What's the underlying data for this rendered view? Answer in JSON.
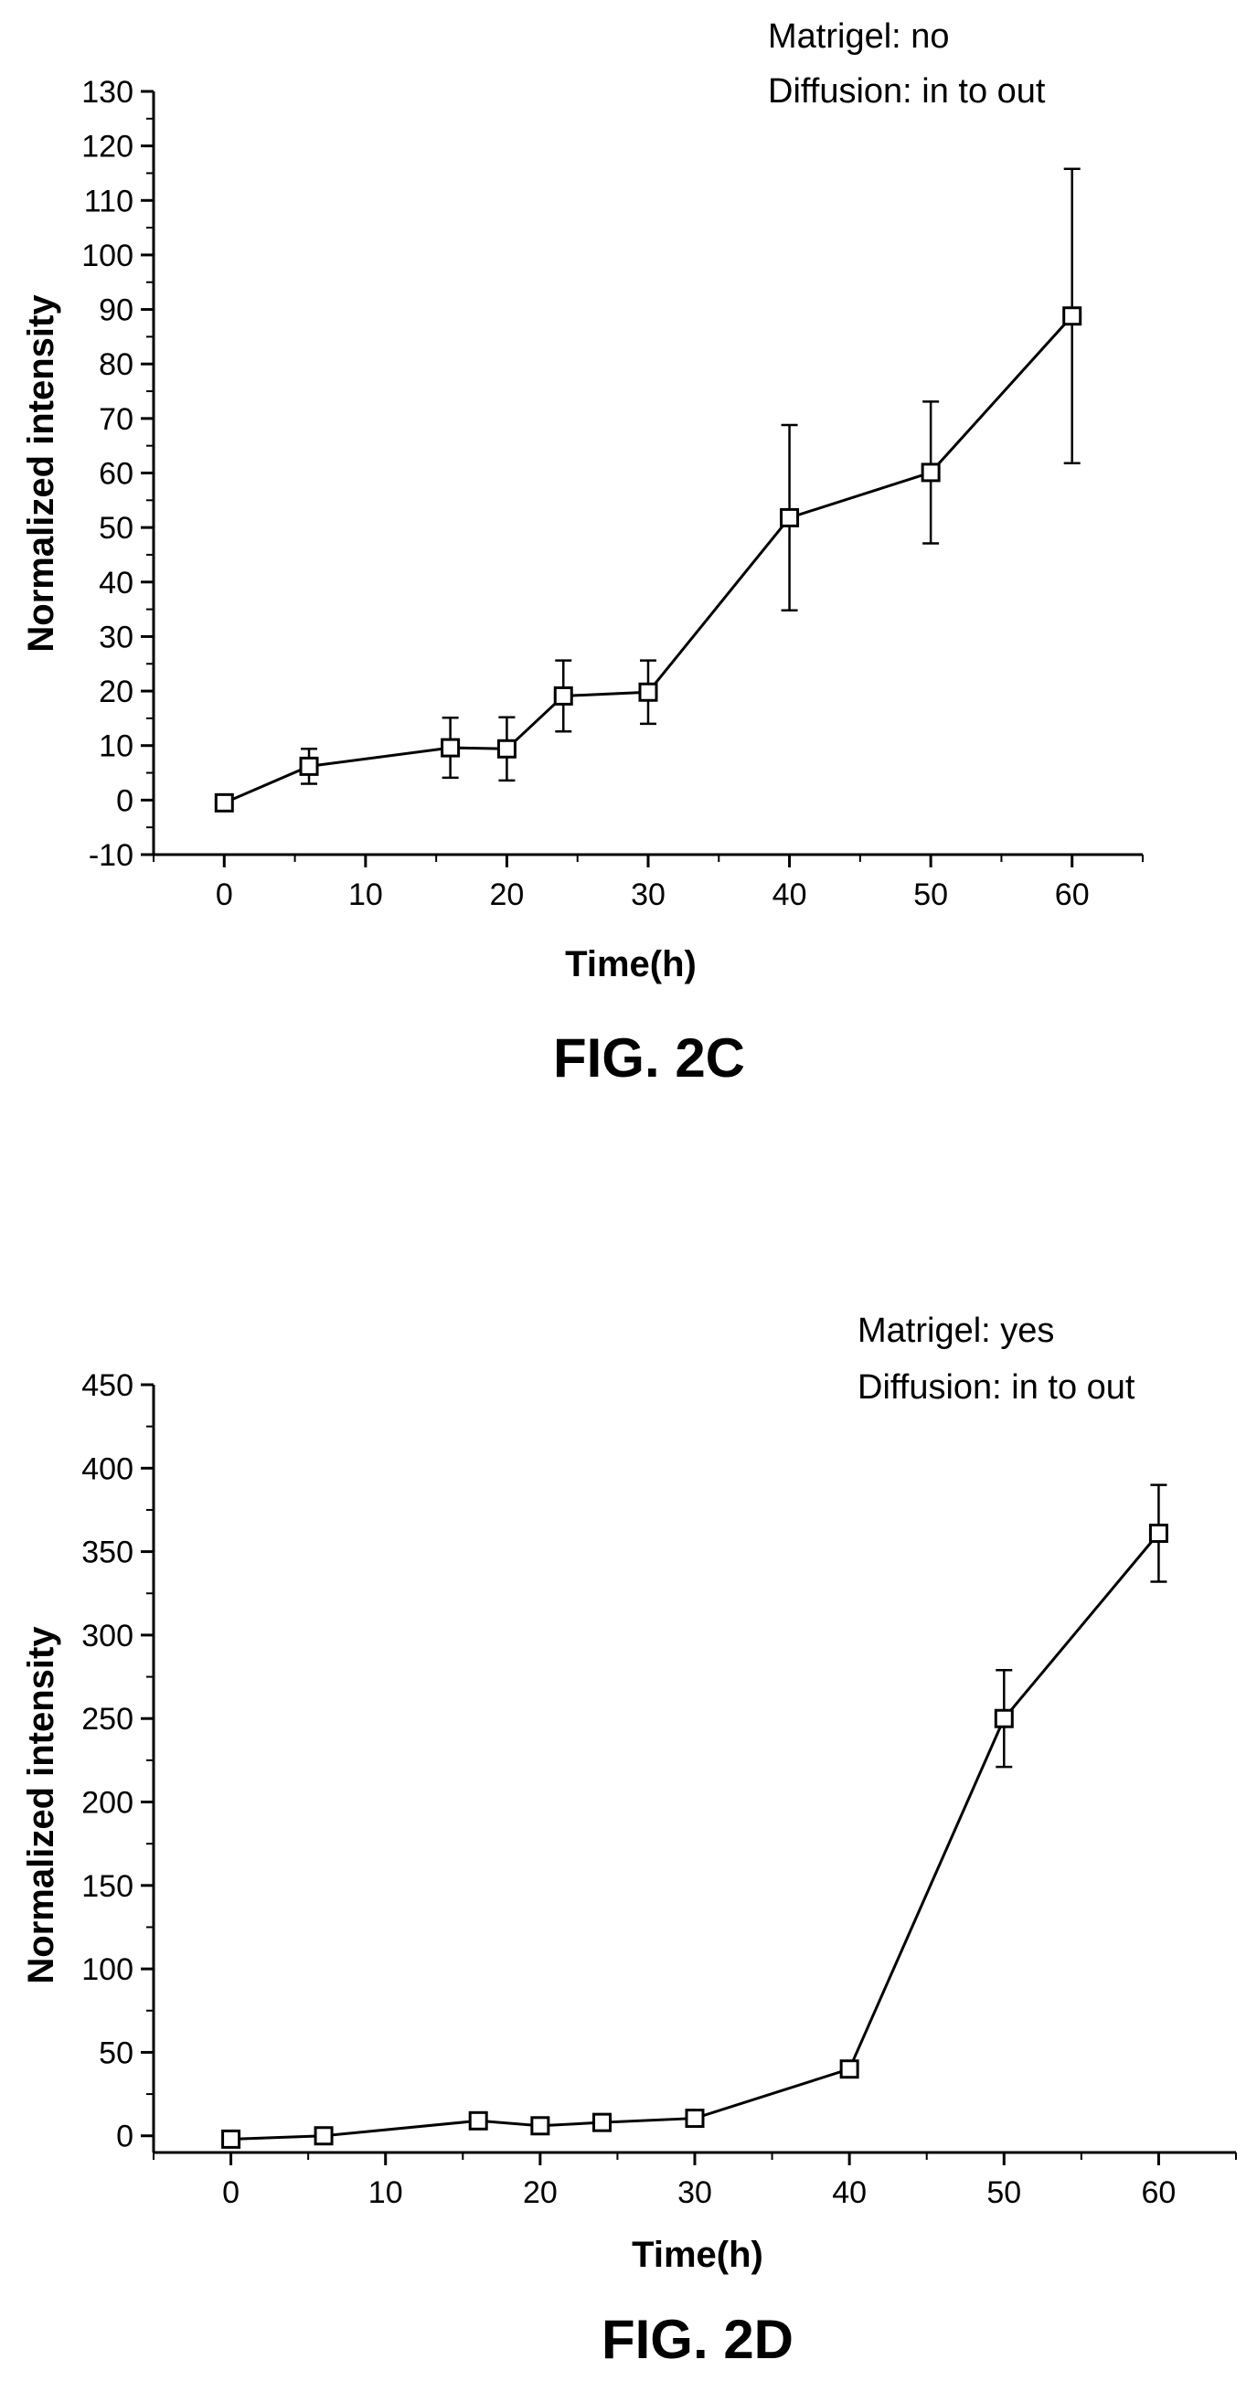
{
  "chart_data": [
    {
      "type": "line",
      "caption": "FIG. 2C",
      "annotations": [
        "Matrigel: no",
        "Diffusion: in to out"
      ],
      "xlabel": "Time(h)",
      "ylabel": "Normalized intensity",
      "xlim": [
        -5,
        65
      ],
      "ylim": [
        -10,
        130
      ],
      "xticks": [
        0,
        10,
        20,
        30,
        40,
        50,
        60
      ],
      "yticks": [
        -10,
        0,
        10,
        20,
        30,
        40,
        50,
        60,
        70,
        80,
        90,
        100,
        110,
        120,
        130
      ],
      "grid": false,
      "legend": "none",
      "series": [
        {
          "marker": "open-square",
          "x": [
            0,
            6,
            16,
            20,
            24,
            30,
            40,
            50,
            60
          ],
          "y": [
            -0.5,
            6.2,
            9.6,
            9.4,
            19.1,
            19.8,
            51.8,
            60.1,
            88.8
          ],
          "err": [
            0,
            3.2,
            5.5,
            5.8,
            6.5,
            5.8,
            17.0,
            13.0,
            27.0
          ]
        }
      ]
    },
    {
      "type": "line",
      "caption": "FIG. 2D",
      "annotations": [
        "Matrigel: yes",
        "Diffusion: in to out"
      ],
      "xlabel": "Time(h)",
      "ylabel": "Normalized intensity",
      "xlim": [
        -5,
        65
      ],
      "ylim": [
        -10,
        450
      ],
      "xticks": [
        0,
        10,
        20,
        30,
        40,
        50,
        60
      ],
      "yticks": [
        0,
        50,
        100,
        150,
        200,
        250,
        300,
        350,
        400,
        450
      ],
      "grid": false,
      "legend": "none",
      "series": [
        {
          "marker": "open-square",
          "x": [
            0,
            6,
            16,
            20,
            24,
            30,
            40,
            50,
            60
          ],
          "y": [
            -2,
            0,
            9,
            6,
            8,
            10.5,
            40,
            250,
            361
          ],
          "err": [
            0,
            0,
            0,
            0,
            0,
            0,
            0,
            29,
            29
          ]
        }
      ]
    }
  ]
}
